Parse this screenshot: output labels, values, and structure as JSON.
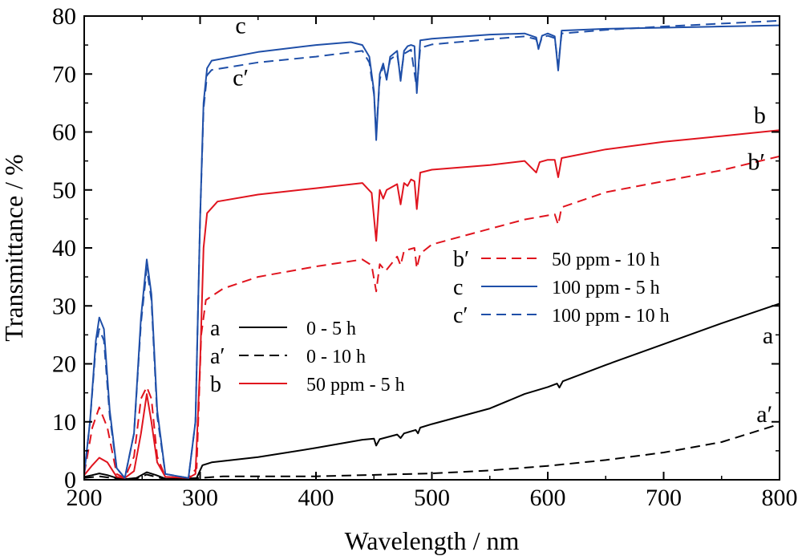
{
  "chart_data": {
    "type": "line",
    "title": "",
    "xlabel": "Wavelength / nm",
    "ylabel": "Transmittance / %",
    "xlim": [
      200,
      800
    ],
    "ylim": [
      0,
      80
    ],
    "x_ticks": [
      200,
      300,
      400,
      500,
      600,
      700,
      800
    ],
    "y_ticks": [
      0,
      10,
      20,
      30,
      40,
      50,
      60,
      70,
      80
    ],
    "grid": false,
    "colors": {
      "black": "#000000",
      "red": "#e0141e",
      "blue": "#1f4fa8"
    },
    "series": [
      {
        "key": "a",
        "name": "0 - 5 h",
        "color": "#000000",
        "dash": false,
        "points": [
          [
            200,
            0.5
          ],
          [
            207,
            0.8
          ],
          [
            213,
            1.1
          ],
          [
            220,
            0.8
          ],
          [
            228,
            0.3
          ],
          [
            235,
            0.1
          ],
          [
            245,
            0.3
          ],
          [
            254,
            1.3
          ],
          [
            262,
            0.8
          ],
          [
            270,
            0.2
          ],
          [
            290,
            0.1
          ],
          [
            297,
            0.3
          ],
          [
            302,
            2.5
          ],
          [
            310,
            3.0
          ],
          [
            350,
            3.9
          ],
          [
            400,
            5.5
          ],
          [
            440,
            6.9
          ],
          [
            450,
            7.1
          ],
          [
            452,
            5.9
          ],
          [
            455,
            7.0
          ],
          [
            470,
            7.8
          ],
          [
            473,
            7.2
          ],
          [
            476,
            8.0
          ],
          [
            486,
            8.6
          ],
          [
            488,
            8.0
          ],
          [
            490,
            9.0
          ],
          [
            500,
            9.6
          ],
          [
            550,
            12.3
          ],
          [
            580,
            14.8
          ],
          [
            600,
            16.0
          ],
          [
            608,
            16.6
          ],
          [
            610,
            15.9
          ],
          [
            613,
            17.0
          ],
          [
            650,
            19.8
          ],
          [
            700,
            23.4
          ],
          [
            750,
            27.0
          ],
          [
            800,
            30.4
          ]
        ]
      },
      {
        "key": "a′",
        "name": "0 - 10 h",
        "color": "#000000",
        "dash": true,
        "points": [
          [
            200,
            0.3
          ],
          [
            213,
            0.6
          ],
          [
            228,
            0.2
          ],
          [
            245,
            0.2
          ],
          [
            254,
            0.9
          ],
          [
            270,
            0.1
          ],
          [
            300,
            0.3
          ],
          [
            320,
            0.6
          ],
          [
            400,
            0.6
          ],
          [
            500,
            1.1
          ],
          [
            550,
            1.6
          ],
          [
            600,
            2.4
          ],
          [
            650,
            3.4
          ],
          [
            700,
            4.7
          ],
          [
            750,
            6.5
          ],
          [
            800,
            9.6
          ]
        ]
      },
      {
        "key": "b",
        "name": "50 ppm - 5 h",
        "color": "#e0141e",
        "dash": false,
        "points": [
          [
            200,
            0.8
          ],
          [
            207,
            2.5
          ],
          [
            213,
            3.8
          ],
          [
            220,
            3.0
          ],
          [
            228,
            0.5
          ],
          [
            235,
            0.3
          ],
          [
            243,
            1.5
          ],
          [
            249,
            8
          ],
          [
            254,
            14.8
          ],
          [
            258,
            10
          ],
          [
            263,
            3
          ],
          [
            270,
            0.5
          ],
          [
            290,
            0.3
          ],
          [
            296,
            1
          ],
          [
            300,
            20
          ],
          [
            303,
            40
          ],
          [
            306,
            46
          ],
          [
            315,
            48
          ],
          [
            350,
            49.2
          ],
          [
            400,
            50.3
          ],
          [
            440,
            51.2
          ],
          [
            448,
            49.5
          ],
          [
            452,
            41.2
          ],
          [
            455,
            50
          ],
          [
            458,
            48.5
          ],
          [
            461,
            50
          ],
          [
            470,
            51
          ],
          [
            473,
            47.5
          ],
          [
            476,
            51.2
          ],
          [
            479,
            50.7
          ],
          [
            482,
            51.8
          ],
          [
            485,
            51.5
          ],
          [
            487,
            46.7
          ],
          [
            490,
            53
          ],
          [
            500,
            53.5
          ],
          [
            550,
            54.3
          ],
          [
            580,
            55
          ],
          [
            590,
            53
          ],
          [
            593,
            54.8
          ],
          [
            600,
            55.2
          ],
          [
            606,
            55.2
          ],
          [
            609,
            52.2
          ],
          [
            612,
            55.5
          ],
          [
            650,
            57
          ],
          [
            700,
            58.3
          ],
          [
            750,
            59.3
          ],
          [
            800,
            60.3
          ]
        ]
      },
      {
        "key": "b′",
        "name": "50 ppm - 10 h",
        "color": "#e0141e",
        "dash": true,
        "points": [
          [
            200,
            1
          ],
          [
            207,
            9
          ],
          [
            213,
            12.5
          ],
          [
            220,
            9
          ],
          [
            228,
            1
          ],
          [
            235,
            0.3
          ],
          [
            243,
            4
          ],
          [
            249,
            14
          ],
          [
            254,
            16
          ],
          [
            258,
            14
          ],
          [
            263,
            4
          ],
          [
            270,
            0.5
          ],
          [
            290,
            0.3
          ],
          [
            297,
            2
          ],
          [
            301,
            25
          ],
          [
            305,
            31
          ],
          [
            320,
            33
          ],
          [
            350,
            35
          ],
          [
            400,
            36.8
          ],
          [
            440,
            38
          ],
          [
            448,
            37
          ],
          [
            452,
            32.5
          ],
          [
            455,
            37.2
          ],
          [
            460,
            36
          ],
          [
            470,
            38.5
          ],
          [
            473,
            37
          ],
          [
            476,
            39.5
          ],
          [
            485,
            40
          ],
          [
            487,
            36.5
          ],
          [
            490,
            39
          ],
          [
            500,
            40.6
          ],
          [
            550,
            43.3
          ],
          [
            580,
            44.9
          ],
          [
            600,
            45.6
          ],
          [
            606,
            45.8
          ],
          [
            609,
            44
          ],
          [
            612,
            47
          ],
          [
            650,
            49.6
          ],
          [
            700,
            51.5
          ],
          [
            750,
            53.4
          ],
          [
            800,
            55.8
          ]
        ]
      },
      {
        "key": "c",
        "name": "100 ppm - 5 h",
        "color": "#1f4fa8",
        "dash": false,
        "points": [
          [
            200,
            1
          ],
          [
            205,
            10
          ],
          [
            210,
            24
          ],
          [
            213,
            28
          ],
          [
            217,
            26
          ],
          [
            222,
            12
          ],
          [
            228,
            2
          ],
          [
            235,
            0.3
          ],
          [
            243,
            8
          ],
          [
            249,
            28
          ],
          [
            254,
            38
          ],
          [
            258,
            32
          ],
          [
            263,
            12
          ],
          [
            270,
            1
          ],
          [
            290,
            0.3
          ],
          [
            296,
            10
          ],
          [
            300,
            45
          ],
          [
            303,
            65
          ],
          [
            306,
            71
          ],
          [
            310,
            72.3
          ],
          [
            350,
            73.8
          ],
          [
            400,
            75
          ],
          [
            430,
            75.5
          ],
          [
            440,
            75
          ],
          [
            446,
            73
          ],
          [
            450,
            67
          ],
          [
            452,
            58.6
          ],
          [
            455,
            70
          ],
          [
            458,
            71.8
          ],
          [
            461,
            69
          ],
          [
            464,
            73
          ],
          [
            470,
            74
          ],
          [
            473,
            68.8
          ],
          [
            476,
            74
          ],
          [
            479,
            74.8
          ],
          [
            482,
            75
          ],
          [
            485,
            74.8
          ],
          [
            487,
            66.7
          ],
          [
            490,
            75.8
          ],
          [
            500,
            76.1
          ],
          [
            550,
            76.8
          ],
          [
            580,
            77
          ],
          [
            590,
            76.3
          ],
          [
            592,
            74.3
          ],
          [
            595,
            76.6
          ],
          [
            600,
            77
          ],
          [
            606,
            76.5
          ],
          [
            609,
            70.6
          ],
          [
            612,
            77.5
          ],
          [
            650,
            77.8
          ],
          [
            700,
            78
          ],
          [
            750,
            78.2
          ],
          [
            800,
            78.4
          ]
        ]
      },
      {
        "key": "c′",
        "name": "100 ppm - 10 h",
        "color": "#1f4fa8",
        "dash": true,
        "points": [
          [
            200,
            1
          ],
          [
            205,
            10
          ],
          [
            210,
            23
          ],
          [
            213,
            26
          ],
          [
            217,
            24
          ],
          [
            222,
            11
          ],
          [
            228,
            2
          ],
          [
            235,
            0.3
          ],
          [
            243,
            8
          ],
          [
            249,
            27
          ],
          [
            254,
            36.5
          ],
          [
            258,
            31
          ],
          [
            263,
            11
          ],
          [
            270,
            1
          ],
          [
            290,
            0.3
          ],
          [
            296,
            10
          ],
          [
            300,
            45
          ],
          [
            303,
            64
          ],
          [
            306,
            69.8
          ],
          [
            310,
            70.7
          ],
          [
            350,
            72
          ],
          [
            400,
            73
          ],
          [
            440,
            74
          ],
          [
            446,
            72
          ],
          [
            450,
            66.5
          ],
          [
            452,
            60
          ],
          [
            455,
            69
          ],
          [
            458,
            71.5
          ],
          [
            461,
            69.5
          ],
          [
            464,
            72.5
          ],
          [
            470,
            73.4
          ],
          [
            473,
            69.5
          ],
          [
            476,
            73.5
          ],
          [
            482,
            74.2
          ],
          [
            487,
            67.5
          ],
          [
            490,
            74.5
          ],
          [
            500,
            75.1
          ],
          [
            550,
            76
          ],
          [
            580,
            76.5
          ],
          [
            590,
            76
          ],
          [
            592,
            74.5
          ],
          [
            595,
            76.3
          ],
          [
            600,
            76.6
          ],
          [
            606,
            76.2
          ],
          [
            609,
            71.5
          ],
          [
            612,
            77
          ],
          [
            650,
            77.6
          ],
          [
            700,
            78.2
          ],
          [
            750,
            78.7
          ],
          [
            800,
            79.2
          ]
        ]
      }
    ],
    "curve_labels": [
      {
        "text": "c",
        "x": 335,
        "y": 77
      },
      {
        "text": "c′",
        "x": 335,
        "y": 68
      },
      {
        "text": "b",
        "x": 783,
        "y": 61.5
      },
      {
        "text": "b′",
        "x": 780,
        "y": 53.5
      },
      {
        "text": "a",
        "x": 790,
        "y": 23.5
      },
      {
        "text": "a′",
        "x": 787,
        "y": 10
      }
    ],
    "legend": [
      {
        "placement": "center-left",
        "entries": [
          {
            "key": "a",
            "label": "0 - 5 h",
            "series": 0
          },
          {
            "key": "a′",
            "label": "0 - 10 h",
            "series": 1
          },
          {
            "key": "b",
            "label": "50 ppm - 5 h",
            "series": 2
          }
        ]
      },
      {
        "placement": "center-right",
        "entries": [
          {
            "key": "b′",
            "label": "50 ppm - 10 h",
            "series": 3
          },
          {
            "key": "c",
            "label": "100 ppm - 5 h",
            "series": 4
          },
          {
            "key": "c′",
            "label": "100 ppm - 10 h",
            "series": 5
          }
        ]
      }
    ]
  }
}
